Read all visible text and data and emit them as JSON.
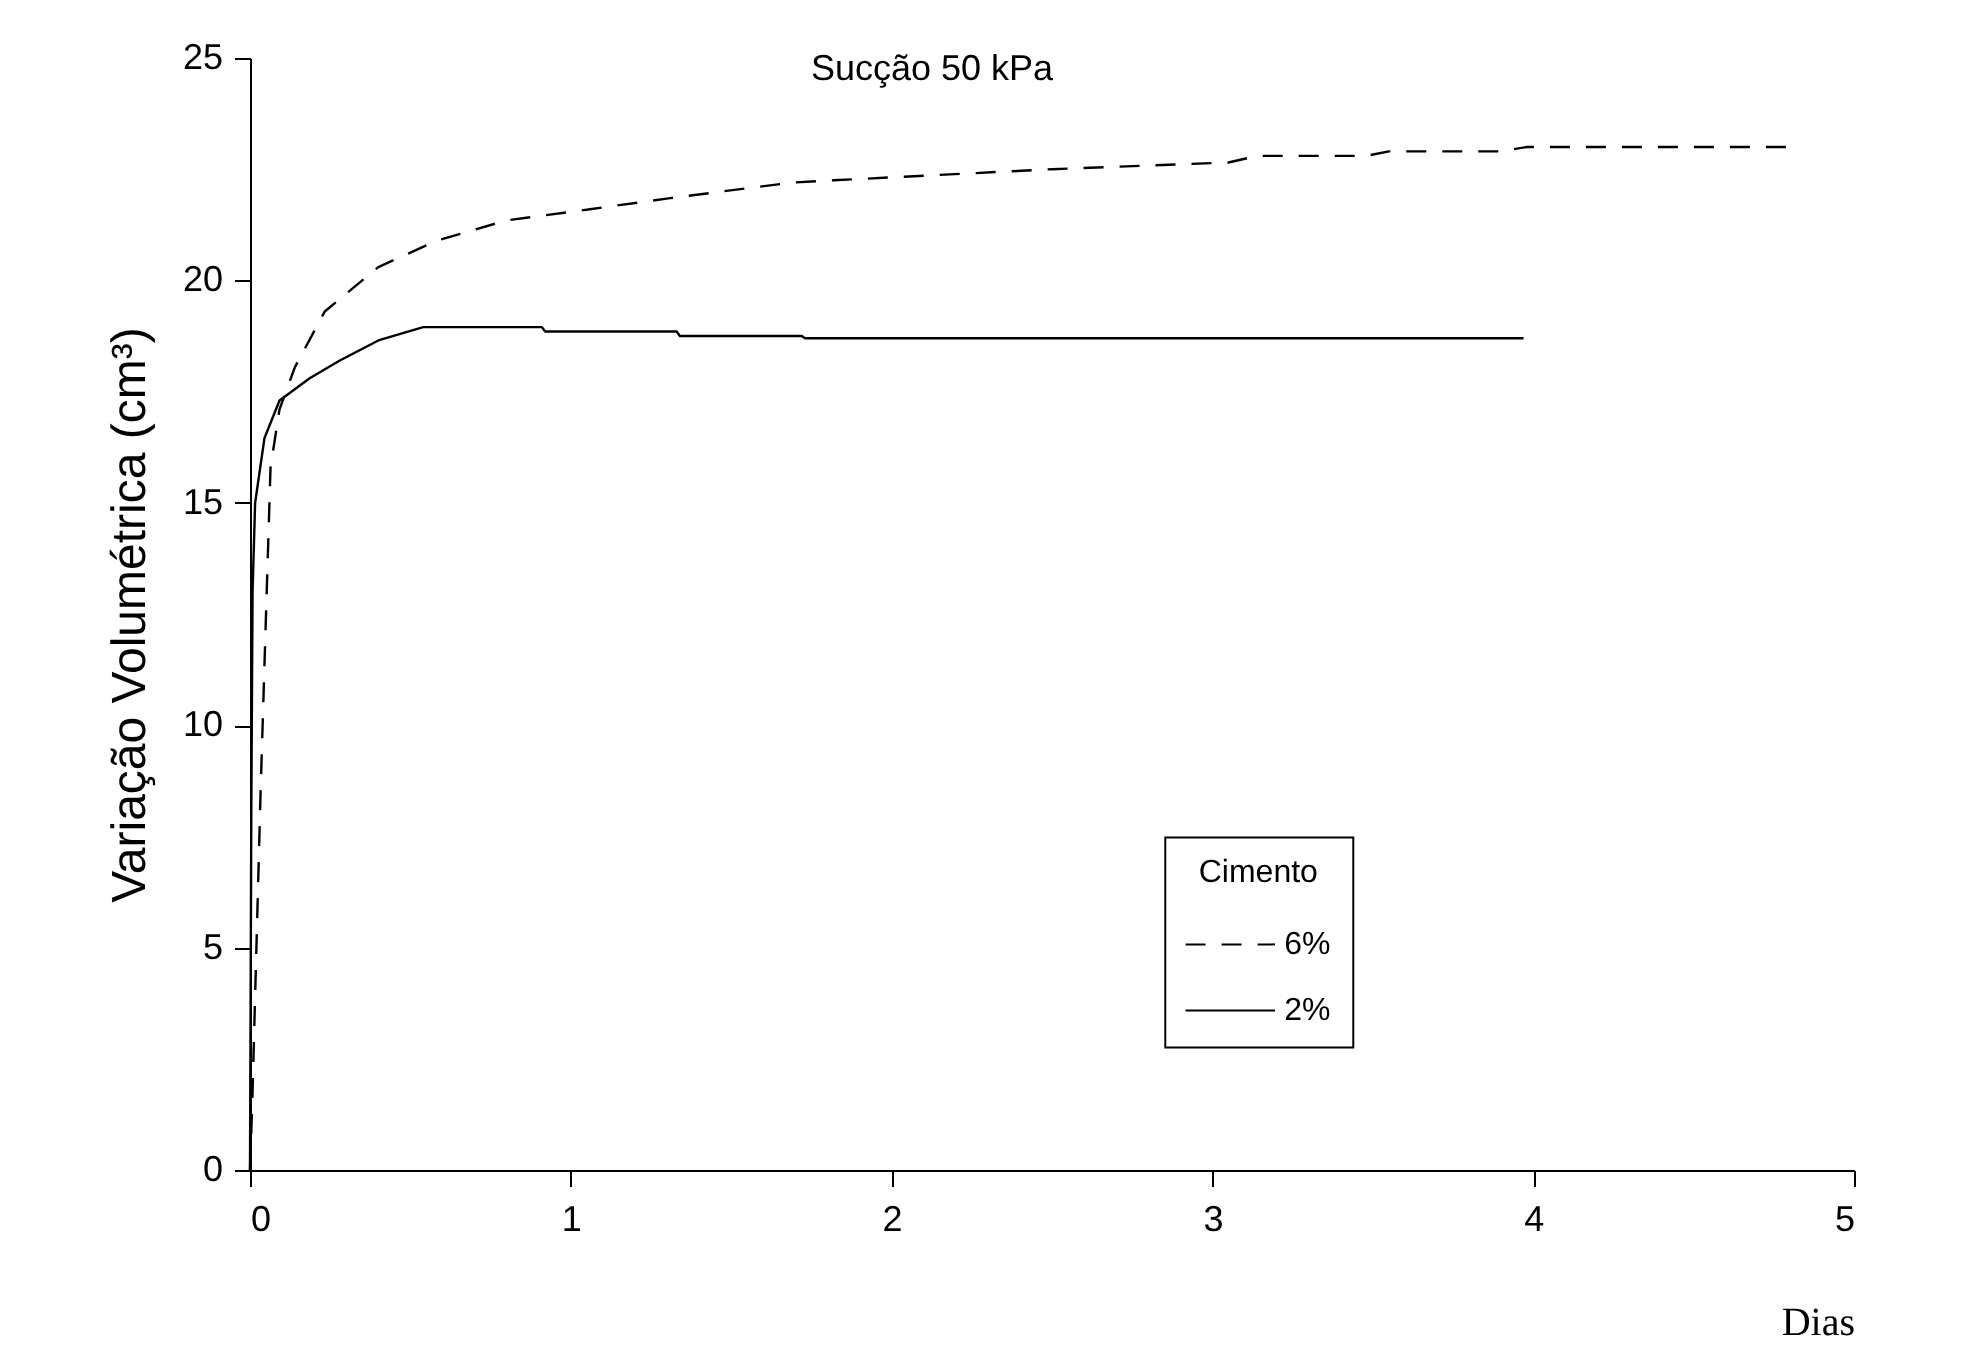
{
  "chart_data": {
    "type": "line",
    "title": "Sucção 50 kPa",
    "xlabel": "Dias",
    "ylabel": "Variação Volumétrica (cm³)",
    "legend_title": "Cimento",
    "xlim": [
      0,
      5
    ],
    "xticks": [
      0,
      1,
      2,
      3,
      4,
      5
    ],
    "ylim": [
      0,
      25
    ],
    "yticks": [
      0,
      5,
      10,
      15,
      20,
      25
    ],
    "grid": false,
    "legend": "bottom right",
    "series": [
      {
        "name": "6%",
        "color": "#000000",
        "line_style": "dashed",
        "x": [
          0,
          0.007,
          0.033,
          0.064,
          0.092,
          0.14,
          0.233,
          0.4,
          0.585,
          0.8,
          1.06,
          1.31,
          1.69,
          1.82,
          2.5,
          3.05,
          3.14,
          3.48,
          3.55,
          3.9,
          3.98,
          4.8
        ],
        "values": [
          0,
          1.5,
          8.5,
          15.8,
          17.1,
          18.05,
          19.3,
          20.3,
          20.9,
          21.35,
          21.6,
          21.85,
          22.2,
          22.25,
          22.5,
          22.65,
          22.8,
          22.8,
          22.9,
          22.9,
          23.0,
          23.0
        ]
      },
      {
        "name": "2%",
        "color": "#000000",
        "line_style": "solid",
        "x": [
          0,
          0.004,
          0.008,
          0.016,
          0.045,
          0.092,
          0.186,
          0.28,
          0.4,
          0.54,
          0.91,
          0.92,
          1.33,
          1.34,
          1.72,
          1.73,
          3.97
        ],
        "values": [
          0,
          8,
          13,
          15.0,
          16.45,
          17.3,
          17.8,
          18.2,
          18.65,
          18.95,
          18.95,
          18.85,
          18.85,
          18.75,
          18.75,
          18.7,
          18.7
        ]
      }
    ]
  }
}
